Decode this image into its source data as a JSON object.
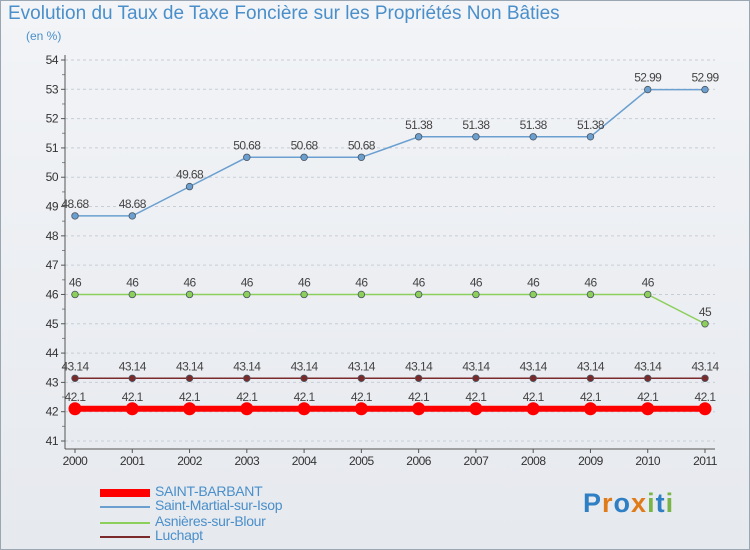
{
  "chart_data": {
    "type": "line",
    "title": "Evolution du Taux de Taxe Foncière sur les Propriétés Non Bâties",
    "ylabel": "(en %)",
    "xlabel": "",
    "categories": [
      "2000",
      "2001",
      "2002",
      "2003",
      "2004",
      "2005",
      "2006",
      "2007",
      "2008",
      "2009",
      "2010",
      "2011"
    ],
    "ylim": [
      41,
      54
    ],
    "yticks": [
      41,
      42,
      43,
      44,
      45,
      46,
      47,
      48,
      49,
      50,
      51,
      52,
      53,
      54
    ],
    "grid": "horizontal dashed",
    "legend_position": "bottom-left",
    "series": [
      {
        "name": "SAINT-BARBANT",
        "color": "#ff0000",
        "values": [
          42.1,
          42.1,
          42.1,
          42.1,
          42.1,
          42.1,
          42.1,
          42.1,
          42.1,
          42.1,
          42.1,
          42.1
        ],
        "labels": [
          "42.1",
          "42.1",
          "42.1",
          "42.1",
          "42.1",
          "42.1",
          "42.1",
          "42.1",
          "42.1",
          "42.1",
          "42.1",
          "42.1"
        ]
      },
      {
        "name": "Saint-Martial-sur-Isop",
        "color": "#6a9fd0",
        "values": [
          48.68,
          48.68,
          49.68,
          50.68,
          50.68,
          50.68,
          51.38,
          51.38,
          51.38,
          51.38,
          52.99,
          52.99
        ],
        "labels": [
          "48.68",
          "48.68",
          "49.68",
          "50.68",
          "50.68",
          "50.68",
          "51.38",
          "51.38",
          "51.38",
          "51.38",
          "52.99",
          "52.99"
        ]
      },
      {
        "name": "Asnières-sur-Blour",
        "color": "#8ccf5a",
        "values": [
          46,
          46,
          46,
          46,
          46,
          46,
          46,
          46,
          46,
          46,
          46,
          45
        ],
        "labels": [
          "46",
          "46",
          "46",
          "46",
          "46",
          "46",
          "46",
          "46",
          "46",
          "46",
          "46",
          "45"
        ]
      },
      {
        "name": "Luchapt",
        "color": "#7a2a2a",
        "values": [
          43.14,
          43.14,
          43.14,
          43.14,
          43.14,
          43.14,
          43.14,
          43.14,
          43.14,
          43.14,
          43.14,
          43.14
        ],
        "labels": [
          "43.14",
          "43.14",
          "43.14",
          "43.14",
          "43.14",
          "43.14",
          "43.14",
          "43.14",
          "43.14",
          "43.14",
          "43.14",
          "43.14"
        ]
      }
    ]
  },
  "logo": {
    "text": "Proxiti",
    "letters": [
      "P",
      "r",
      "o",
      "x",
      "i",
      "t",
      "i"
    ],
    "colors": [
      "#2f7fc4",
      "#e07b19",
      "#2f7fc4",
      "#e07b19",
      "#7ab547",
      "#2f7fc4",
      "#7ab547"
    ]
  }
}
